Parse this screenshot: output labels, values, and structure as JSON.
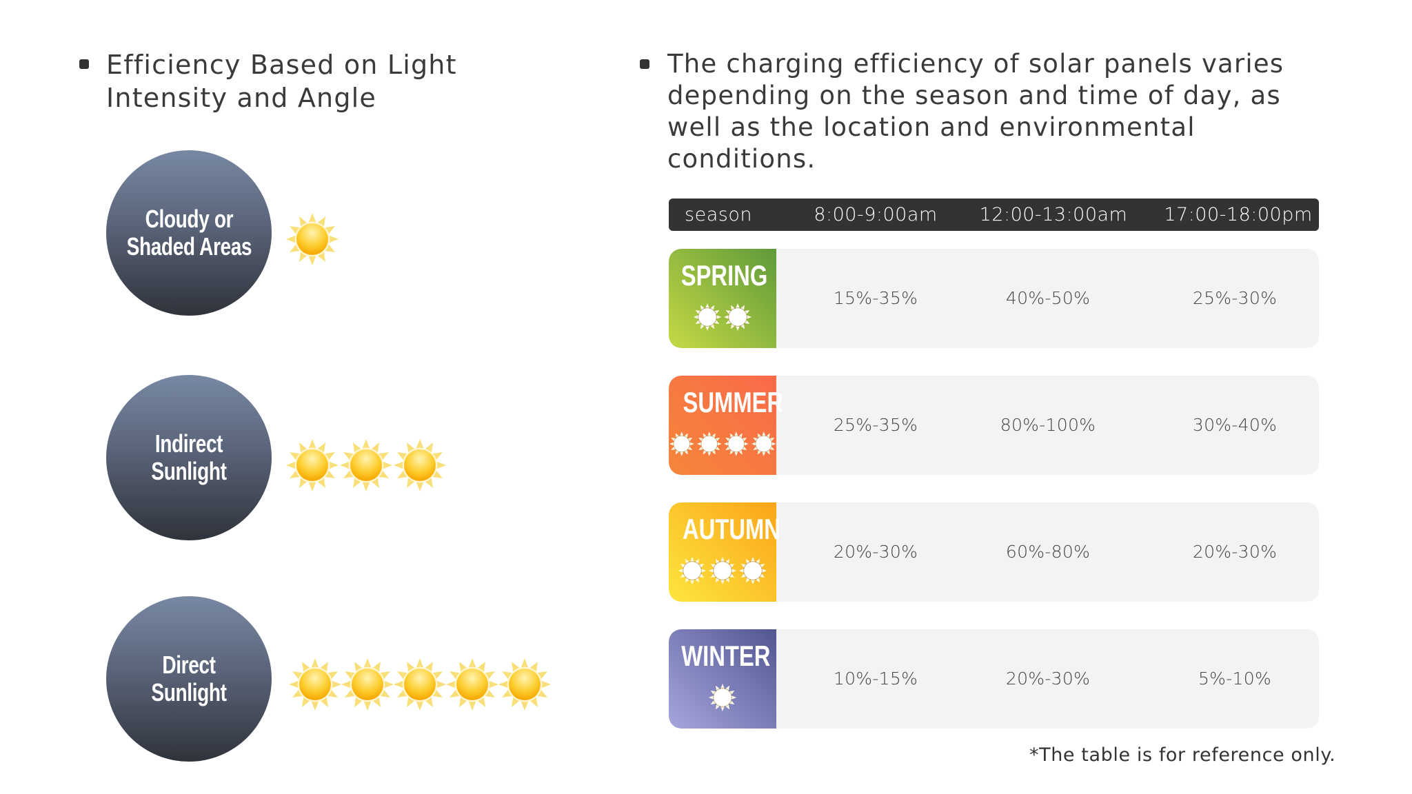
{
  "left_section": {
    "heading": "Efficiency Based on Light Intensity and Angle",
    "levels": [
      {
        "label": "Cloudy or\nShaded Areas",
        "suns": 1
      },
      {
        "label": "Indirect\nSunlight",
        "suns": 3
      },
      {
        "label": "Direct Sunlight",
        "suns": 5
      }
    ]
  },
  "right_section": {
    "heading": "The charging efficiency of solar panels varies depending on the season and time of day, as well as the location and environmental conditions."
  },
  "table": {
    "headers": [
      "season",
      "8:00-9:00am",
      "12:00-13:00am",
      "17:00-18:00pm"
    ],
    "rows": [
      {
        "season": "SPRING",
        "suns": 2,
        "colors": [
          "#c6d945",
          "#5f9a3a"
        ],
        "values": [
          "15%-35%",
          "40%-50%",
          "25%-30%"
        ]
      },
      {
        "season": "SUMMER",
        "suns": 4,
        "colors": [
          "#f4863a",
          "#fb6a4a"
        ],
        "values": [
          "25%-35%",
          "80%-100%",
          "30%-40%"
        ]
      },
      {
        "season": "AUTUMN",
        "suns": 3,
        "colors": [
          "#fde63d",
          "#fba41a"
        ],
        "values": [
          "20%-30%",
          "60%-80%",
          "20%-30%"
        ]
      },
      {
        "season": "WINTER",
        "suns": 1,
        "colors": [
          "#a6a6de",
          "#525690"
        ],
        "values": [
          "10%-15%",
          "20%-30%",
          "5%-10%"
        ]
      }
    ],
    "footnote": "*The table is for reference only."
  },
  "colors": {
    "header_bg": "#333333",
    "row_bg": "#f3f3f3",
    "circle_top": "#7888a3",
    "circle_bottom": "#2f333b",
    "sun_core": "#fbbf1e",
    "sun_rays": "#f7d857"
  },
  "icons": {
    "sun": "sun-icon",
    "bullet": "square-bullet-icon"
  }
}
